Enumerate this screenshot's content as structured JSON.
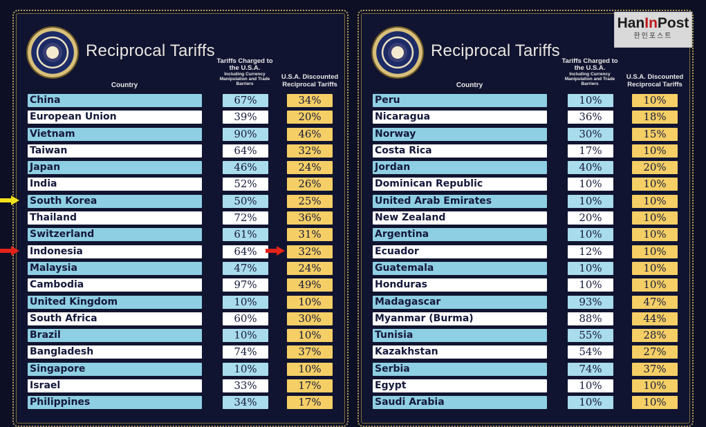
{
  "title": "Reciprocal Tariffs",
  "headers": {
    "country": "Country",
    "charged_main": "Tariffs Charged to the U.S.A.",
    "charged_sub": "Including Currency Manipulation and Trade Barriers",
    "discounted": "U.S.A. Discounted Reciprocal Tariffs"
  },
  "left_rows": [
    {
      "country": "China",
      "charged": "67%",
      "discounted": "34%"
    },
    {
      "country": "European Union",
      "charged": "39%",
      "discounted": "20%"
    },
    {
      "country": "Vietnam",
      "charged": "90%",
      "discounted": "46%"
    },
    {
      "country": "Taiwan",
      "charged": "64%",
      "discounted": "32%"
    },
    {
      "country": "Japan",
      "charged": "46%",
      "discounted": "24%"
    },
    {
      "country": "India",
      "charged": "52%",
      "discounted": "26%"
    },
    {
      "country": "South Korea",
      "charged": "50%",
      "discounted": "25%"
    },
    {
      "country": "Thailand",
      "charged": "72%",
      "discounted": "36%"
    },
    {
      "country": "Switzerland",
      "charged": "61%",
      "discounted": "31%"
    },
    {
      "country": "Indonesia",
      "charged": "64%",
      "discounted": "32%"
    },
    {
      "country": "Malaysia",
      "charged": "47%",
      "discounted": "24%"
    },
    {
      "country": "Cambodia",
      "charged": "97%",
      "discounted": "49%"
    },
    {
      "country": "United Kingdom",
      "charged": "10%",
      "discounted": "10%"
    },
    {
      "country": "South Africa",
      "charged": "60%",
      "discounted": "30%"
    },
    {
      "country": "Brazil",
      "charged": "10%",
      "discounted": "10%"
    },
    {
      "country": "Bangladesh",
      "charged": "74%",
      "discounted": "37%"
    },
    {
      "country": "Singapore",
      "charged": "10%",
      "discounted": "10%"
    },
    {
      "country": "Israel",
      "charged": "33%",
      "discounted": "17%"
    },
    {
      "country": "Philippines",
      "charged": "34%",
      "discounted": "17%"
    }
  ],
  "right_rows": [
    {
      "country": "Peru",
      "charged": "10%",
      "discounted": "10%"
    },
    {
      "country": "Nicaragua",
      "charged": "36%",
      "discounted": "18%"
    },
    {
      "country": "Norway",
      "charged": "30%",
      "discounted": "15%"
    },
    {
      "country": "Costa Rica",
      "charged": "17%",
      "discounted": "10%"
    },
    {
      "country": "Jordan",
      "charged": "40%",
      "discounted": "20%"
    },
    {
      "country": "Dominican Republic",
      "charged": "10%",
      "discounted": "10%"
    },
    {
      "country": "United Arab Emirates",
      "charged": "10%",
      "discounted": "10%"
    },
    {
      "country": "New Zealand",
      "charged": "20%",
      "discounted": "10%"
    },
    {
      "country": "Argentina",
      "charged": "10%",
      "discounted": "10%"
    },
    {
      "country": "Ecuador",
      "charged": "12%",
      "discounted": "10%"
    },
    {
      "country": "Guatemala",
      "charged": "10%",
      "discounted": "10%"
    },
    {
      "country": "Honduras",
      "charged": "10%",
      "discounted": "10%"
    },
    {
      "country": "Madagascar",
      "charged": "93%",
      "discounted": "47%"
    },
    {
      "country": "Myanmar (Burma)",
      "charged": "88%",
      "discounted": "44%"
    },
    {
      "country": "Tunisia",
      "charged": "55%",
      "discounted": "28%"
    },
    {
      "country": "Kazakhstan",
      "charged": "54%",
      "discounted": "27%"
    },
    {
      "country": "Serbia",
      "charged": "74%",
      "discounted": "37%"
    },
    {
      "country": "Egypt",
      "charged": "10%",
      "discounted": "10%"
    },
    {
      "country": "Saudi Arabia",
      "charged": "10%",
      "discounted": "10%"
    }
  ],
  "colors": {
    "background": "#0d1024",
    "country_band_blue": "#8fcfe3",
    "discount_yellow": "#f5cf66",
    "arrow_yellow": "#f3e21a",
    "arrow_red": "#e2231a"
  },
  "annotations": [
    {
      "type": "arrow",
      "color": "yellow",
      "points_to": "South Korea"
    },
    {
      "type": "arrow",
      "color": "red",
      "points_to": "Indonesia"
    },
    {
      "type": "arrow",
      "color": "red",
      "points_to": "Indonesia discounted tariff"
    }
  ],
  "logo": {
    "main_a": "Han",
    "main_b": "In",
    "main_c": "Post",
    "sub": "한인포스트"
  }
}
